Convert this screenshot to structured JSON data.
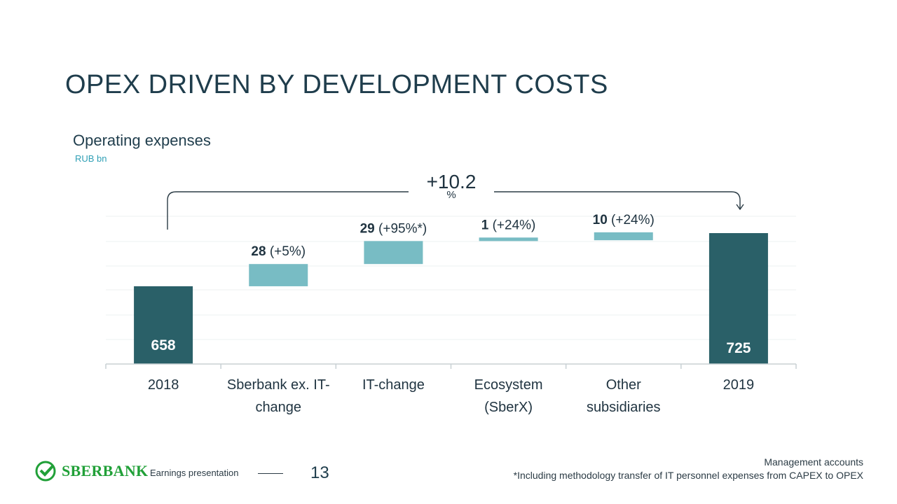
{
  "header": {
    "title": "OPEX DRIVEN BY DEVELOPMENT COSTS"
  },
  "chart_heading": {
    "title": "Operating expenses",
    "unit": "RUB bn"
  },
  "chart_data": {
    "type": "waterfall",
    "title": "Operating expenses",
    "ylabel": "RUB bn",
    "categories": [
      "2018",
      "Sberbank ex. IT-change",
      "IT-change",
      "Ecosystem (SberX)",
      "Other subsidiaries",
      "2019"
    ],
    "category_lines": [
      [
        "2018"
      ],
      [
        "Sberbank ex. IT-",
        "change"
      ],
      [
        "IT-change"
      ],
      [
        "Ecosystem",
        "(SberX)"
      ],
      [
        "Other",
        "subsidiaries"
      ],
      [
        "2019"
      ]
    ],
    "values": [
      658,
      28,
      29,
      1,
      10,
      725
    ],
    "kinds": [
      "total",
      "delta",
      "delta",
      "delta",
      "delta",
      "total"
    ],
    "value_labels": [
      "658",
      "28",
      "29",
      "1",
      "10",
      "725"
    ],
    "growth_labels": [
      "",
      "(+5%)",
      "(+95%*)",
      "(+24%)",
      "(+24%)",
      ""
    ],
    "overall_change": "+10.2",
    "overall_change_unit": "%",
    "ylim": [
      560,
      740
    ],
    "colors": {
      "total": "#2a6068",
      "delta": "#78bcc4",
      "axis": "#c8d0d4",
      "grid": "#eef1f2"
    }
  },
  "footer": {
    "brand": "SBERBANK",
    "label": "Earnings presentation",
    "page": "13",
    "source": "Management accounts",
    "footnote": "*Including methodology transfer of IT personnel expenses from CAPEX to OPEX",
    "brand_color": "#21a038"
  }
}
